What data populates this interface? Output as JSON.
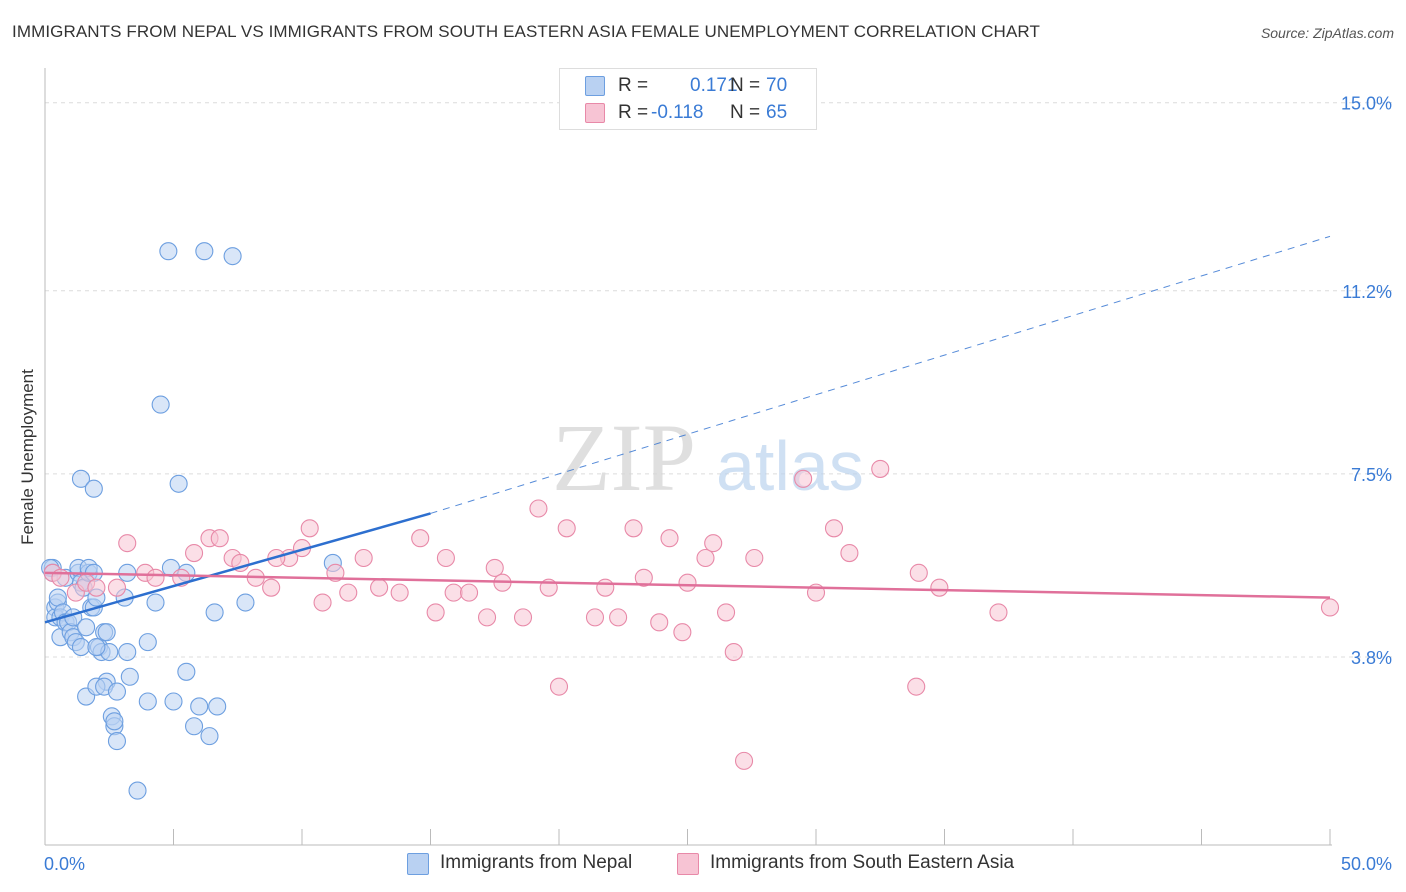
{
  "chart_data": {
    "type": "scatter",
    "title": "IMMIGRANTS FROM NEPAL VS IMMIGRANTS FROM SOUTH EASTERN ASIA FEMALE UNEMPLOYMENT CORRELATION CHART",
    "source": "Source: ZipAtlas.com",
    "xlabel": "",
    "ylabel": "Female Unemployment",
    "xlim": [
      0,
      50
    ],
    "ylim": [
      0,
      15.5
    ],
    "x_tick_labels": {
      "min": "0.0%",
      "max": "50.0%"
    },
    "y_ticks": [
      {
        "value": 3.8,
        "label": "3.8%"
      },
      {
        "value": 7.5,
        "label": "7.5%"
      },
      {
        "value": 11.2,
        "label": "11.2%"
      },
      {
        "value": 15.0,
        "label": "15.0%"
      }
    ],
    "watermark": {
      "zip": "ZIP",
      "atlas": "atlas"
    },
    "legend_top": [
      {
        "r_label": "R =",
        "r_value": "0.171",
        "n_label": "N =",
        "n_value": "70"
      },
      {
        "r_label": "R =",
        "r_value": "-0.118",
        "n_label": "N =",
        "n_value": "65"
      }
    ],
    "series": [
      {
        "name": "Immigrants from Nepal",
        "color": "#6d9fe0",
        "fill": "#b9d1f2",
        "trendline": {
          "x0": 0,
          "y0": 4.5,
          "x1": 15,
          "y1": 6.7,
          "x_end": 50,
          "y_end": 12.3,
          "color": "#2d6fcf"
        },
        "points": [
          [
            0.3,
            5.6
          ],
          [
            0.4,
            4.8
          ],
          [
            0.4,
            4.6
          ],
          [
            0.5,
            4.9
          ],
          [
            0.5,
            5.0
          ],
          [
            0.6,
            4.2
          ],
          [
            0.6,
            4.6
          ],
          [
            0.7,
            4.7
          ],
          [
            0.8,
            4.5
          ],
          [
            0.8,
            5.4
          ],
          [
            0.9,
            4.5
          ],
          [
            1.0,
            4.3
          ],
          [
            1.1,
            4.2
          ],
          [
            1.1,
            4.6
          ],
          [
            1.2,
            4.1
          ],
          [
            1.3,
            5.5
          ],
          [
            1.3,
            5.6
          ],
          [
            1.4,
            4.0
          ],
          [
            1.4,
            5.3
          ],
          [
            1.5,
            5.2
          ],
          [
            1.6,
            4.4
          ],
          [
            1.7,
            5.5
          ],
          [
            1.7,
            5.6
          ],
          [
            1.8,
            4.8
          ],
          [
            1.9,
            5.5
          ],
          [
            1.9,
            4.8
          ],
          [
            2.0,
            5.0
          ],
          [
            2.1,
            4.0
          ],
          [
            2.2,
            3.9
          ],
          [
            2.3,
            4.3
          ],
          [
            2.4,
            4.3
          ],
          [
            2.5,
            3.9
          ],
          [
            2.6,
            2.6
          ],
          [
            2.7,
            2.4
          ],
          [
            2.7,
            2.5
          ],
          [
            2.8,
            2.1
          ],
          [
            3.1,
            5.0
          ],
          [
            3.2,
            3.9
          ],
          [
            3.3,
            3.4
          ],
          [
            4.0,
            4.1
          ],
          [
            4.0,
            2.9
          ],
          [
            4.3,
            4.9
          ],
          [
            4.5,
            8.9
          ],
          [
            4.8,
            12.0
          ],
          [
            4.9,
            5.6
          ],
          [
            5.0,
            2.9
          ],
          [
            5.2,
            7.3
          ],
          [
            5.5,
            5.5
          ],
          [
            5.5,
            3.5
          ],
          [
            5.8,
            2.4
          ],
          [
            6.0,
            2.8
          ],
          [
            6.2,
            12.0
          ],
          [
            6.4,
            2.2
          ],
          [
            6.6,
            4.7
          ],
          [
            6.7,
            2.8
          ],
          [
            7.3,
            11.9
          ],
          [
            7.8,
            4.9
          ],
          [
            11.2,
            5.7
          ],
          [
            0.2,
            5.6
          ],
          [
            1.4,
            7.4
          ],
          [
            1.9,
            7.2
          ],
          [
            3.2,
            5.5
          ],
          [
            2.0,
            4.0
          ],
          [
            2.4,
            3.3
          ],
          [
            1.6,
            3.0
          ],
          [
            2.0,
            3.2
          ],
          [
            2.3,
            3.2
          ],
          [
            2.8,
            3.1
          ],
          [
            3.6,
            1.1
          ],
          [
            0.3,
            5.5
          ]
        ]
      },
      {
        "name": "Immigrants from South Eastern Asia",
        "color": "#e889a8",
        "fill": "#f7c4d4",
        "trendline": {
          "x0": 0,
          "y0": 5.5,
          "x1": 50,
          "y1": 5.0,
          "color": "#e0709a"
        },
        "points": [
          [
            0.3,
            5.5
          ],
          [
            0.6,
            5.4
          ],
          [
            1.2,
            5.1
          ],
          [
            1.6,
            5.3
          ],
          [
            2.0,
            5.2
          ],
          [
            2.8,
            5.2
          ],
          [
            3.2,
            6.1
          ],
          [
            3.9,
            5.5
          ],
          [
            4.3,
            5.4
          ],
          [
            5.3,
            5.4
          ],
          [
            5.8,
            5.9
          ],
          [
            6.4,
            6.2
          ],
          [
            6.8,
            6.2
          ],
          [
            7.3,
            5.8
          ],
          [
            7.6,
            5.7
          ],
          [
            8.2,
            5.4
          ],
          [
            8.8,
            5.2
          ],
          [
            9.5,
            5.8
          ],
          [
            10.0,
            6.0
          ],
          [
            10.3,
            6.4
          ],
          [
            10.8,
            4.9
          ],
          [
            11.3,
            5.5
          ],
          [
            11.8,
            5.1
          ],
          [
            12.4,
            5.8
          ],
          [
            13.0,
            5.2
          ],
          [
            13.8,
            5.1
          ],
          [
            14.6,
            6.2
          ],
          [
            15.2,
            4.7
          ],
          [
            15.6,
            5.8
          ],
          [
            15.9,
            5.1
          ],
          [
            16.5,
            5.1
          ],
          [
            17.2,
            4.6
          ],
          [
            17.5,
            5.6
          ],
          [
            17.8,
            5.3
          ],
          [
            18.6,
            4.6
          ],
          [
            19.2,
            6.8
          ],
          [
            19.6,
            5.2
          ],
          [
            20.0,
            3.2
          ],
          [
            20.3,
            6.4
          ],
          [
            21.4,
            4.6
          ],
          [
            21.8,
            5.2
          ],
          [
            22.3,
            4.6
          ],
          [
            22.9,
            6.4
          ],
          [
            23.3,
            5.4
          ],
          [
            23.9,
            4.5
          ],
          [
            24.3,
            6.2
          ],
          [
            24.8,
            4.3
          ],
          [
            25.7,
            5.8
          ],
          [
            26.0,
            6.1
          ],
          [
            26.5,
            4.7
          ],
          [
            26.8,
            3.9
          ],
          [
            27.2,
            1.7
          ],
          [
            27.6,
            5.8
          ],
          [
            29.5,
            7.4
          ],
          [
            30.0,
            5.1
          ],
          [
            30.7,
            6.4
          ],
          [
            31.3,
            5.9
          ],
          [
            32.5,
            7.6
          ],
          [
            33.9,
            3.2
          ],
          [
            34.0,
            5.5
          ],
          [
            34.8,
            5.2
          ],
          [
            37.1,
            4.7
          ],
          [
            50.0,
            4.8
          ],
          [
            25.0,
            5.3
          ],
          [
            9.0,
            5.8
          ]
        ]
      }
    ]
  }
}
